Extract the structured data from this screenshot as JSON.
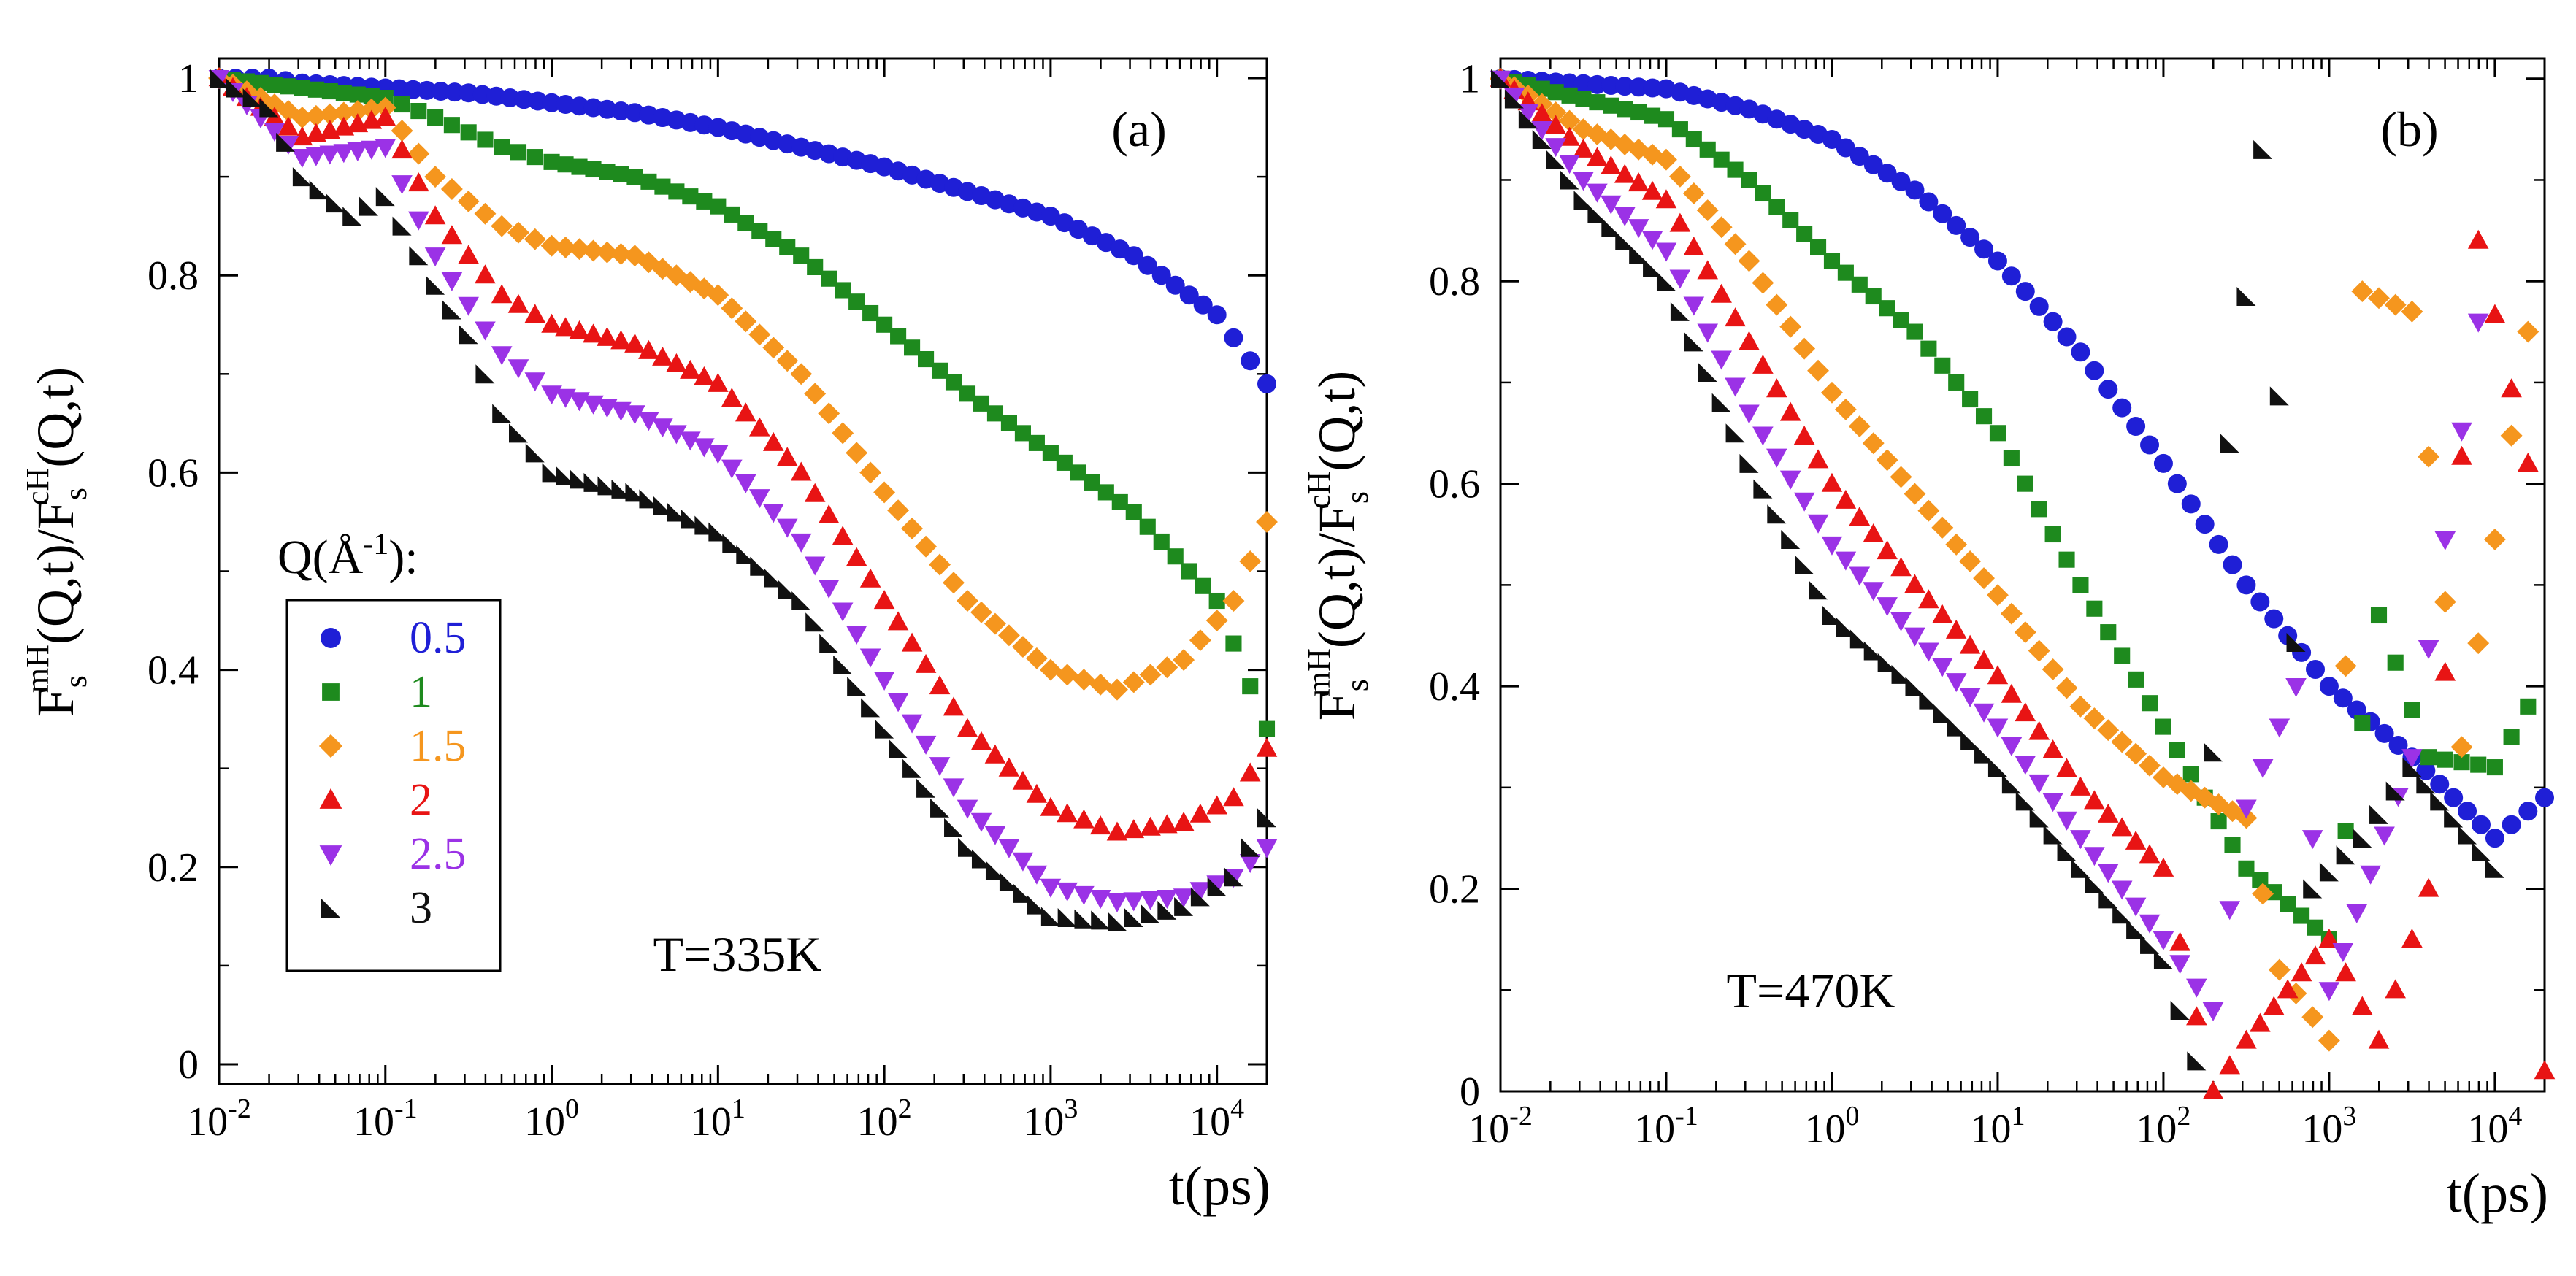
{
  "colors": {
    "0.5": "#1f1fd6",
    "1": "#1e8a1e",
    "1.5": "#f5961e",
    "2": "#e81414",
    "2.5": "#9b32e6",
    "3": "#111111",
    "axis": "#000000"
  },
  "legend": {
    "title_main": "Q(Å",
    "title_exp": "-1",
    "title_tail": "):",
    "entries": [
      "0.5",
      "1",
      "1.5",
      "2",
      "2.5",
      "3"
    ]
  },
  "chart_data": [
    {
      "type": "scatter",
      "panel_label": "(a)",
      "temperature_label": "T=335K",
      "xlabel": "t(ps)",
      "ylabel": {
        "f1": "F",
        "f1_sub": "s",
        "f1_sup": "mH",
        "mid": "(Q,t)/F",
        "f2_sub": "s",
        "f2_sup": "cH",
        "tail": "(Q,t)"
      },
      "xscale": "log",
      "xlim_log10": [
        -2,
        4.3
      ],
      "ylim": [
        -0.02,
        1.02
      ],
      "x_ticks": [
        {
          "base": "10",
          "exp": "-2"
        },
        {
          "base": "10",
          "exp": "-1"
        },
        {
          "base": "10",
          "exp": "0"
        },
        {
          "base": "10",
          "exp": "1"
        },
        {
          "base": "10",
          "exp": "2"
        },
        {
          "base": "10",
          "exp": "3"
        },
        {
          "base": "10",
          "exp": "4"
        }
      ],
      "y_ticks": [
        "0",
        "0.2",
        "0.4",
        "0.6",
        "0.8",
        "1"
      ],
      "y_tick_values": [
        0,
        0.2,
        0.4,
        0.6,
        0.8,
        1
      ],
      "series": [
        {
          "name": "0.5",
          "marker": "circle",
          "points": [
            [
              -2,
              1.0
            ],
            [
              -1.7,
              1.0
            ],
            [
              -1.5,
              0.995
            ],
            [
              -1,
              0.99
            ],
            [
              -0.5,
              0.985
            ],
            [
              0,
              0.975
            ],
            [
              0.5,
              0.965
            ],
            [
              1,
              0.95
            ],
            [
              1.5,
              0.93
            ],
            [
              2,
              0.91
            ],
            [
              2.5,
              0.885
            ],
            [
              3,
              0.86
            ],
            [
              3.5,
              0.82
            ],
            [
              4,
              0.76
            ],
            [
              4.3,
              0.69
            ]
          ]
        },
        {
          "name": "1",
          "marker": "square",
          "points": [
            [
              -2,
              1.0
            ],
            [
              -1.5,
              0.99
            ],
            [
              -1,
              0.98
            ],
            [
              -0.7,
              0.96
            ],
            [
              -0.3,
              0.93
            ],
            [
              0,
              0.915
            ],
            [
              0.5,
              0.9
            ],
            [
              1,
              0.87
            ],
            [
              1.5,
              0.82
            ],
            [
              2,
              0.75
            ],
            [
              2.5,
              0.68
            ],
            [
              3,
              0.62
            ],
            [
              3.5,
              0.56
            ],
            [
              4,
              0.47
            ],
            [
              4.3,
              0.34
            ]
          ]
        },
        {
          "name": "1.5",
          "marker": "diamond",
          "points": [
            [
              -2,
              1.0
            ],
            [
              -1.5,
              0.96
            ],
            [
              -1,
              0.97
            ],
            [
              -0.7,
              0.9
            ],
            [
              -0.3,
              0.85
            ],
            [
              0,
              0.83
            ],
            [
              0.5,
              0.82
            ],
            [
              1,
              0.78
            ],
            [
              1.5,
              0.7
            ],
            [
              2,
              0.58
            ],
            [
              2.5,
              0.47
            ],
            [
              3,
              0.4
            ],
            [
              3.4,
              0.38
            ],
            [
              3.8,
              0.41
            ],
            [
              4.1,
              0.47
            ],
            [
              4.3,
              0.55
            ]
          ]
        },
        {
          "name": "2",
          "marker": "triangle-up",
          "points": [
            [
              -2,
              1.0
            ],
            [
              -1.5,
              0.94
            ],
            [
              -1,
              0.96
            ],
            [
              -0.7,
              0.86
            ],
            [
              -0.3,
              0.78
            ],
            [
              0,
              0.75
            ],
            [
              0.5,
              0.73
            ],
            [
              1,
              0.69
            ],
            [
              1.5,
              0.6
            ],
            [
              2,
              0.47
            ],
            [
              2.5,
              0.34
            ],
            [
              3,
              0.26
            ],
            [
              3.4,
              0.235
            ],
            [
              3.8,
              0.245
            ],
            [
              4.1,
              0.27
            ],
            [
              4.3,
              0.32
            ]
          ]
        },
        {
          "name": "2.5",
          "marker": "triangle-down",
          "points": [
            [
              -2,
              1.0
            ],
            [
              -1.5,
              0.92
            ],
            [
              -1,
              0.93
            ],
            [
              -0.7,
              0.82
            ],
            [
              -0.3,
              0.72
            ],
            [
              0,
              0.68
            ],
            [
              0.5,
              0.66
            ],
            [
              1,
              0.62
            ],
            [
              1.5,
              0.53
            ],
            [
              2,
              0.39
            ],
            [
              2.5,
              0.26
            ],
            [
              3,
              0.18
            ],
            [
              3.4,
              0.165
            ],
            [
              3.8,
              0.17
            ],
            [
              4.1,
              0.19
            ],
            [
              4.3,
              0.22
            ]
          ]
        },
        {
          "name": "3",
          "marker": "triangle-right",
          "points": [
            [
              -2,
              1.0
            ],
            [
              -1.7,
              0.97
            ],
            [
              -1.5,
              0.9
            ],
            [
              -1.2,
              0.86
            ],
            [
              -1,
              0.88
            ],
            [
              -0.7,
              0.79
            ],
            [
              -0.5,
              0.74
            ],
            [
              -0.3,
              0.66
            ],
            [
              0,
              0.6
            ],
            [
              0.5,
              0.58
            ],
            [
              1,
              0.54
            ],
            [
              1.5,
              0.47
            ],
            [
              2,
              0.34
            ],
            [
              2.5,
              0.22
            ],
            [
              3,
              0.15
            ],
            [
              3.4,
              0.145
            ],
            [
              3.8,
              0.16
            ],
            [
              4.1,
              0.19
            ],
            [
              4.3,
              0.25
            ]
          ]
        }
      ]
    },
    {
      "type": "scatter",
      "panel_label": "(b)",
      "temperature_label": "T=470K",
      "xlabel": "t(ps)",
      "ylabel": {
        "f1": "F",
        "f1_sub": "s",
        "f1_sup": "mH",
        "mid": "(Q,t)/F",
        "f2_sub": "s",
        "f2_sup": "cH",
        "tail": "(Q,t)"
      },
      "xscale": "log",
      "xlim_log10": [
        -2,
        4.3
      ],
      "ylim": [
        0,
        1.02
      ],
      "x_ticks": [
        {
          "base": "10",
          "exp": "-2"
        },
        {
          "base": "10",
          "exp": "-1"
        },
        {
          "base": "10",
          "exp": "0"
        },
        {
          "base": "10",
          "exp": "1"
        },
        {
          "base": "10",
          "exp": "2"
        },
        {
          "base": "10",
          "exp": "3"
        },
        {
          "base": "10",
          "exp": "4"
        }
      ],
      "y_ticks": [
        "0",
        "0.2",
        "0.4",
        "0.6",
        "0.8",
        "1"
      ],
      "y_tick_values": [
        0,
        0.2,
        0.4,
        0.6,
        0.8,
        1
      ],
      "series": [
        {
          "name": "0.5",
          "marker": "circle",
          "points": [
            [
              -2,
              1.0
            ],
            [
              -1.5,
              0.995
            ],
            [
              -1,
              0.99
            ],
            [
              -0.5,
              0.97
            ],
            [
              0,
              0.94
            ],
            [
              0.5,
              0.89
            ],
            [
              1,
              0.82
            ],
            [
              1.5,
              0.73
            ],
            [
              2,
              0.62
            ],
            [
              2.5,
              0.5
            ],
            [
              3,
              0.4
            ],
            [
              3.5,
              0.33
            ],
            [
              4,
              0.25
            ],
            [
              4.3,
              0.29
            ]
          ]
        },
        {
          "name": "1",
          "marker": "square",
          "points": [
            [
              -2,
              1.0
            ],
            [
              -1.5,
              0.98
            ],
            [
              -1,
              0.96
            ],
            [
              -0.5,
              0.9
            ],
            [
              0,
              0.82
            ],
            [
              0.5,
              0.75
            ],
            [
              1,
              0.65
            ],
            [
              1.5,
              0.5
            ],
            [
              2,
              0.36
            ],
            [
              2.5,
              0.22
            ],
            [
              3,
              0.15
            ],
            [
              3.3,
              0.47
            ],
            [
              3.6,
              0.33
            ],
            [
              4,
              0.32
            ],
            [
              4.2,
              0.38
            ]
          ]
        },
        {
          "name": "1.5",
          "marker": "diamond",
          "points": [
            [
              -2,
              1.0
            ],
            [
              -1.5,
              0.95
            ],
            [
              -1,
              0.92
            ],
            [
              -0.5,
              0.82
            ],
            [
              0,
              0.69
            ],
            [
              0.5,
              0.59
            ],
            [
              1,
              0.49
            ],
            [
              1.5,
              0.38
            ],
            [
              2,
              0.31
            ],
            [
              2.5,
              0.27
            ],
            [
              2.7,
              0.12
            ],
            [
              3,
              0.05
            ],
            [
              3.2,
              0.79
            ],
            [
              3.5,
              0.77
            ],
            [
              3.8,
              0.34
            ],
            [
              4.2,
              0.75
            ]
          ]
        },
        {
          "name": "2",
          "marker": "triangle-up",
          "points": [
            [
              -2,
              1.0
            ],
            [
              -1.5,
              0.93
            ],
            [
              -1,
              0.88
            ],
            [
              -0.5,
              0.74
            ],
            [
              0,
              0.6
            ],
            [
              0.5,
              0.5
            ],
            [
              1,
              0.41
            ],
            [
              1.5,
              0.3
            ],
            [
              2,
              0.22
            ],
            [
              2.3,
              0.0
            ],
            [
              2.5,
              0.05
            ],
            [
              3,
              0.15
            ],
            [
              3.3,
              0.05
            ],
            [
              3.6,
              0.2
            ],
            [
              3.9,
              0.84
            ],
            [
              4.2,
              0.62
            ],
            [
              4.3,
              0.02
            ]
          ]
        },
        {
          "name": "2.5",
          "marker": "triangle-down",
          "points": [
            [
              -2,
              1.0
            ],
            [
              -1.5,
              0.9
            ],
            [
              -1,
              0.83
            ],
            [
              -0.5,
              0.67
            ],
            [
              0,
              0.54
            ],
            [
              0.5,
              0.45
            ],
            [
              1,
              0.36
            ],
            [
              1.5,
              0.25
            ],
            [
              2,
              0.15
            ],
            [
              2.3,
              0.08
            ],
            [
              2.5,
              0.28
            ],
            [
              2.8,
              0.4
            ],
            [
              3,
              0.1
            ],
            [
              3.5,
              0.33
            ],
            [
              3.9,
              0.76
            ]
          ]
        },
        {
          "name": "3",
          "marker": "triangle-right",
          "points": [
            [
              -2,
              1.0
            ],
            [
              -1.5,
              0.88
            ],
            [
              -1,
              0.8
            ],
            [
              -0.5,
              0.62
            ],
            [
              0,
              0.47
            ],
            [
              0.5,
              0.4
            ],
            [
              1,
              0.32
            ],
            [
              1.5,
              0.22
            ],
            [
              2,
              0.13
            ],
            [
              2.2,
              0.03
            ],
            [
              2.4,
              0.64
            ],
            [
              2.6,
              0.93
            ],
            [
              2.9,
              0.2
            ],
            [
              3.2,
              0.25
            ],
            [
              3.5,
              0.32
            ],
            [
              4,
              0.22
            ]
          ]
        }
      ]
    }
  ]
}
